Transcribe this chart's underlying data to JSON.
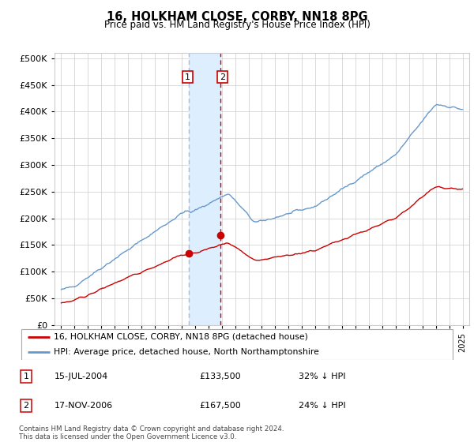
{
  "title": "16, HOLKHAM CLOSE, CORBY, NN18 8PG",
  "subtitle": "Price paid vs. HM Land Registry's House Price Index (HPI)",
  "legend_line1": "16, HOLKHAM CLOSE, CORBY, NN18 8PG (detached house)",
  "legend_line2": "HPI: Average price, detached house, North Northamptonshire",
  "transaction1_date": "15-JUL-2004",
  "transaction1_price": "£133,500",
  "transaction1_hpi": "32% ↓ HPI",
  "transaction1_year": 2004.54,
  "transaction1_value": 133500,
  "transaction2_date": "17-NOV-2006",
  "transaction2_price": "£167,500",
  "transaction2_hpi": "24% ↓ HPI",
  "transaction2_year": 2006.88,
  "transaction2_value": 167500,
  "hpi_color": "#6699cc",
  "price_color": "#cc0000",
  "shade_color": "#ddeeff",
  "vline1_color": "#aabbdd",
  "vline2_color": "#cc0000",
  "ylim_min": 0,
  "ylim_max": 510000,
  "footer_text": "Contains HM Land Registry data © Crown copyright and database right 2024.\nThis data is licensed under the Open Government Licence v3.0.",
  "background_color": "#ffffff",
  "grid_color": "#cccccc"
}
